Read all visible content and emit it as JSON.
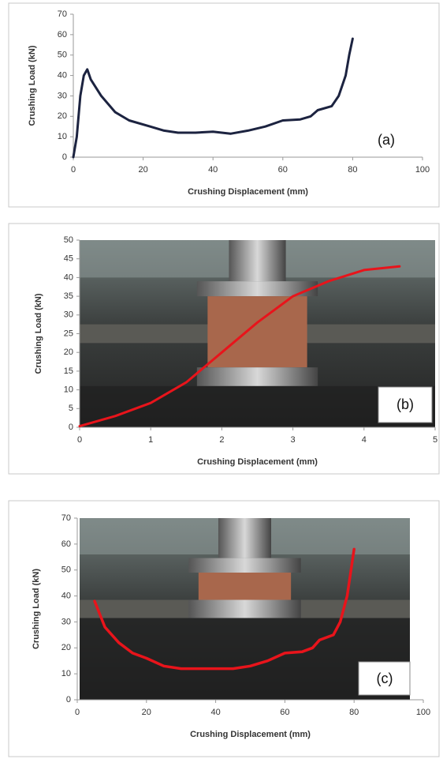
{
  "chart_data": [
    {
      "type": "line",
      "xlabel": "Crushing Displacement (mm)",
      "ylabel": "Crushing Load (kN)",
      "annotation": "(a)",
      "x": [
        0,
        1,
        2,
        3,
        4,
        5,
        8,
        12,
        16,
        22,
        26,
        30,
        35,
        40,
        45,
        50,
        55,
        60,
        65,
        68,
        70,
        74,
        76,
        78,
        79,
        80
      ],
      "series": [
        {
          "color": "#1c2340",
          "values": [
            0,
            10,
            30,
            40,
            43,
            38,
            30,
            22,
            18,
            15,
            13,
            12,
            12,
            12.5,
            11.5,
            13,
            15,
            18,
            18.5,
            20,
            23,
            25,
            30,
            40,
            50,
            58
          ]
        }
      ],
      "xlim": [
        0,
        100
      ],
      "ylim": [
        0,
        70
      ],
      "xticks": [
        0,
        20,
        40,
        60,
        80,
        100
      ],
      "yticks": [
        0,
        10,
        20,
        30,
        40,
        50,
        60,
        70
      ]
    },
    {
      "type": "line",
      "xlabel": "Crushing Displacement (mm)",
      "ylabel": "Crushing Load (kN)",
      "annotation": "(b)",
      "x": [
        0,
        0.5,
        1,
        1.5,
        2,
        2.5,
        3,
        3.5,
        4,
        4.5
      ],
      "series": [
        {
          "color": "#e8141b",
          "values": [
            0.3,
            3,
            6.5,
            12,
            20,
            28,
            35,
            39,
            42,
            43
          ]
        }
      ],
      "xlim": [
        0,
        5
      ],
      "ylim": [
        0,
        50
      ],
      "xticks": [
        0,
        1,
        2,
        3,
        4,
        5
      ],
      "yticks": [
        0,
        5,
        10,
        15,
        20,
        25,
        30,
        35,
        40,
        45,
        50
      ]
    },
    {
      "type": "line",
      "xlabel": "Crushing Displacement (mm)",
      "ylabel": "Crushing Load (kN)",
      "annotation": "(c)",
      "x": [
        5,
        8,
        12,
        16,
        20,
        25,
        30,
        40,
        45,
        50,
        55,
        60,
        65,
        68,
        70,
        74,
        76,
        78,
        80
      ],
      "series": [
        {
          "color": "#e8141b",
          "values": [
            38,
            28,
            22,
            18,
            16,
            13,
            12,
            12,
            12,
            13,
            15,
            18,
            18.5,
            20,
            23,
            25,
            30,
            40,
            58
          ]
        }
      ],
      "xlim": [
        0,
        100
      ],
      "ylim": [
        0,
        70
      ],
      "xticks": [
        0,
        20,
        40,
        60,
        80,
        100
      ],
      "yticks": [
        0,
        10,
        20,
        30,
        40,
        50,
        60,
        70
      ]
    }
  ]
}
